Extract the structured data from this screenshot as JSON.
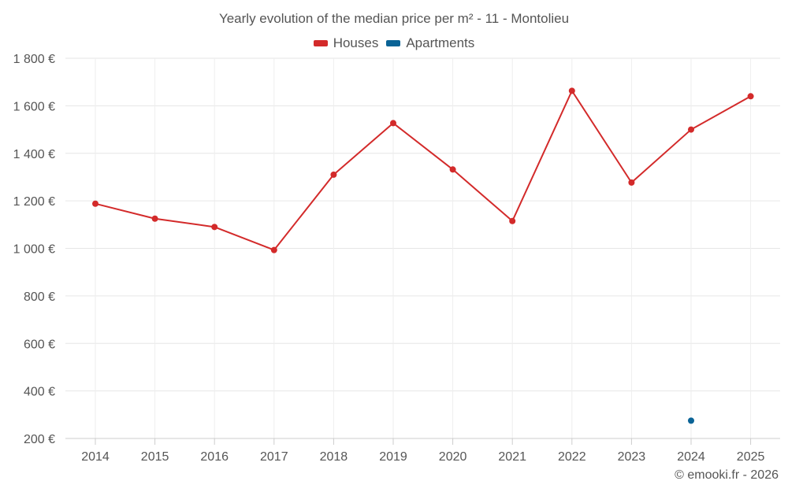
{
  "chart_data": {
    "type": "line",
    "title": "Yearly evolution of the median price per m² - 11 - Montolieu",
    "categories": [
      "2014",
      "2015",
      "2016",
      "2017",
      "2018",
      "2019",
      "2020",
      "2021",
      "2022",
      "2023",
      "2024",
      "2025"
    ],
    "series": [
      {
        "name": "Houses",
        "color": "#d32a2a",
        "values": [
          1188,
          1125,
          1090,
          993,
          1310,
          1527,
          1332,
          1115,
          1663,
          1277,
          1500,
          1640
        ]
      },
      {
        "name": "Apartments",
        "color": "#0a6396",
        "values": [
          null,
          null,
          null,
          null,
          null,
          null,
          null,
          null,
          null,
          null,
          275,
          null
        ]
      }
    ],
    "ylim": [
      200,
      1800
    ],
    "yticks": [
      200,
      400,
      600,
      800,
      1000,
      1200,
      1400,
      1600,
      1800
    ],
    "ytick_labels": [
      "200 €",
      "400 €",
      "600 €",
      "800 €",
      "1 000 €",
      "1 200 €",
      "1 400 €",
      "1 600 €",
      "1 800 €"
    ],
    "grid": true,
    "legend": "top-center",
    "xlabel": "",
    "ylabel": ""
  },
  "credits": "© emooki.fr - 2026"
}
